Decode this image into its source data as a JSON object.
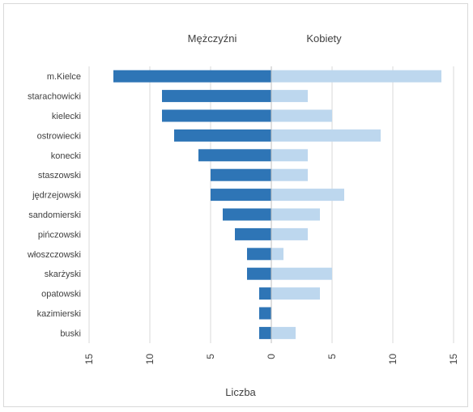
{
  "chart_data": {
    "type": "bar",
    "orientation": "horizontal-diverging",
    "categories": [
      "m.Kielce",
      "starachowicki",
      "kielecki",
      "ostrowiecki",
      "konecki",
      "staszowski",
      "jędrzejowski",
      "sandomierski",
      "pińczowski",
      "włoszczowski",
      "skarżyski",
      "opatowski",
      "kazimierski",
      "buski"
    ],
    "series": [
      {
        "name": "Mężczyźni",
        "color": "#2e75b6",
        "values": [
          13,
          9,
          9,
          8,
          6,
          5,
          5,
          4,
          3,
          2,
          2,
          1,
          1,
          1
        ]
      },
      {
        "name": "Kobiety",
        "color": "#bdd7ee",
        "values": [
          14,
          3,
          5,
          9,
          3,
          3,
          6,
          4,
          3,
          1,
          5,
          4,
          0,
          2
        ]
      }
    ],
    "xlabel": "Liczba",
    "x_ticks": [
      "15",
      "10",
      "5",
      "0",
      "5",
      "10",
      "15"
    ],
    "xlim": [
      -15,
      15
    ],
    "grid": true,
    "legend_placement": "top"
  }
}
